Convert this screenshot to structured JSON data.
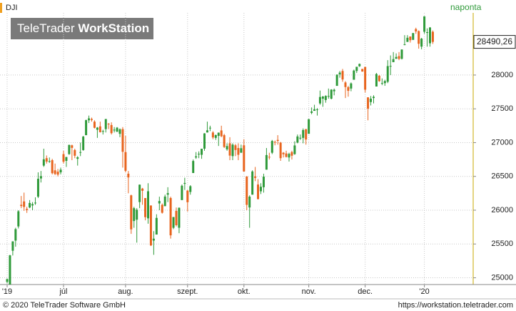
{
  "chart_data": {
    "type": "candlestick",
    "symbol": "DJI",
    "interval": "naponta",
    "logo": {
      "light": "TeleTrader",
      "bold": "WorkStation"
    },
    "footer_left": "© 2020 TeleTrader Software GmbH",
    "footer_right": "https://workstation.teletrader.com",
    "up_color": "#2f9a3a",
    "down_color": "#e8641e",
    "grid": true,
    "ylim": [
      24900,
      29110
    ],
    "yticks": [
      25000,
      25500,
      26000,
      26500,
      27000,
      27500,
      28000
    ],
    "xticks": [
      {
        "value": 0,
        "label": "'19"
      },
      {
        "value": 20,
        "label": "júl"
      },
      {
        "value": 42,
        "label": "aug."
      },
      {
        "value": 64,
        "label": "szept."
      },
      {
        "value": 84,
        "label": "okt."
      },
      {
        "value": 107,
        "label": "nov."
      },
      {
        "value": 127,
        "label": "dec."
      },
      {
        "value": 148,
        "label": "'20"
      }
    ],
    "last_price": {
      "value": 28490.26,
      "label": "28490,26"
    },
    "candles": [
      [
        24940,
        24990,
        24920,
        24980
      ],
      [
        24830,
        25340,
        24820,
        25332
      ],
      [
        25400,
        25540,
        25330,
        25539
      ],
      [
        25550,
        25740,
        25460,
        25720
      ],
      [
        25760,
        26000,
        25730,
        25984
      ],
      [
        26080,
        26210,
        26030,
        26062
      ],
      [
        26130,
        26260,
        25990,
        26048
      ],
      [
        26020,
        26050,
        25960,
        26004
      ],
      [
        26040,
        26150,
        26030,
        26107
      ],
      [
        26070,
        26120,
        26000,
        26090
      ],
      [
        26110,
        26190,
        26080,
        26112
      ],
      [
        26200,
        26560,
        26180,
        26465
      ],
      [
        26470,
        26580,
        26410,
        26504
      ],
      [
        26660,
        26910,
        26640,
        26753
      ],
      [
        26770,
        26810,
        26690,
        26719
      ],
      [
        26720,
        26780,
        26700,
        26727
      ],
      [
        26740,
        26760,
        26530,
        26548
      ],
      [
        26590,
        26690,
        26520,
        26536
      ],
      [
        26570,
        26610,
        26500,
        26526
      ],
      [
        26560,
        26630,
        26530,
        26600
      ],
      [
        26830,
        26880,
        26690,
        26717
      ],
      [
        26730,
        26790,
        26640,
        26786
      ],
      [
        26830,
        26970,
        26820,
        26966
      ],
      [
        26960,
        26970,
        26740,
        26922
      ],
      [
        26890,
        26910,
        26770,
        26806
      ],
      [
        26760,
        26800,
        26660,
        26783
      ],
      [
        26860,
        27000,
        26800,
        26860
      ],
      [
        26890,
        27100,
        26880,
        27088
      ],
      [
        27110,
        27340,
        27110,
        27332
      ],
      [
        27330,
        27400,
        27290,
        27359
      ],
      [
        27350,
        27370,
        27310,
        27335
      ],
      [
        27310,
        27330,
        27210,
        27219
      ],
      [
        27190,
        27230,
        27070,
        27222
      ],
      [
        27240,
        27310,
        27150,
        27154
      ],
      [
        27170,
        27190,
        27120,
        27171
      ],
      [
        27200,
        27350,
        27150,
        27349
      ],
      [
        27280,
        27290,
        27200,
        27270
      ],
      [
        27260,
        27300,
        27120,
        27140
      ],
      [
        27180,
        27230,
        27150,
        27192
      ],
      [
        27160,
        27230,
        27160,
        27221
      ],
      [
        27130,
        27210,
        27080,
        27198
      ],
      [
        27200,
        27230,
        26630,
        26864
      ],
      [
        26860,
        27100,
        26560,
        26583
      ],
      [
        26540,
        26580,
        26250,
        26485
      ],
      [
        26220,
        26230,
        25650,
        25717
      ],
      [
        25840,
        26050,
        25740,
        26030
      ],
      [
        25860,
        26030,
        25520,
        26007
      ],
      [
        26120,
        26380,
        26030,
        26378
      ],
      [
        26320,
        26330,
        26080,
        26287
      ],
      [
        26180,
        26180,
        25850,
        25897
      ],
      [
        25880,
        26400,
        25800,
        26280
      ],
      [
        26070,
        26070,
        25470,
        25479
      ],
      [
        25550,
        25690,
        25340,
        25579
      ],
      [
        25640,
        25940,
        25640,
        25886
      ],
      [
        26100,
        26200,
        26000,
        26136
      ],
      [
        26080,
        26100,
        25950,
        25962
      ],
      [
        26060,
        26230,
        26060,
        26202
      ],
      [
        26230,
        26340,
        26120,
        26252
      ],
      [
        26180,
        26200,
        25580,
        25628
      ],
      [
        25740,
        25900,
        25720,
        25899
      ],
      [
        25990,
        26040,
        25760,
        25778
      ],
      [
        25740,
        26040,
        25660,
        26036
      ],
      [
        26150,
        26380,
        26150,
        26362
      ],
      [
        26390,
        26480,
        26300,
        26403
      ],
      [
        26290,
        26300,
        25980,
        26118
      ],
      [
        26270,
        26370,
        26230,
        26355
      ],
      [
        26550,
        26750,
        26550,
        26728
      ],
      [
        26780,
        26860,
        26760,
        26797
      ],
      [
        26830,
        26870,
        26770,
        26835
      ],
      [
        26820,
        26910,
        26760,
        26909
      ],
      [
        26910,
        27140,
        26880,
        27137
      ],
      [
        27150,
        27310,
        27150,
        27182
      ],
      [
        27210,
        27250,
        27170,
        27220
      ],
      [
        27150,
        27170,
        27050,
        27076
      ],
      [
        27070,
        27120,
        27040,
        27111
      ],
      [
        27100,
        27150,
        26950,
        27147
      ],
      [
        27180,
        27250,
        27080,
        27094
      ],
      [
        27110,
        27130,
        26920,
        26935
      ],
      [
        26900,
        26990,
        26880,
        26949
      ],
      [
        26990,
        27080,
        26740,
        26808
      ],
      [
        26800,
        26990,
        26740,
        26970
      ],
      [
        26960,
        26980,
        26800,
        26891
      ],
      [
        26920,
        26990,
        26740,
        26820
      ],
      [
        26850,
        26970,
        26850,
        26917
      ],
      [
        26960,
        27050,
        26570,
        26573
      ],
      [
        26500,
        26500,
        26000,
        26079
      ],
      [
        26040,
        26220,
        25740,
        26201
      ],
      [
        26230,
        26590,
        26230,
        26573
      ],
      [
        26500,
        26640,
        26430,
        26478
      ],
      [
        26380,
        26460,
        26160,
        26164
      ],
      [
        26280,
        26400,
        26240,
        26347
      ],
      [
        26340,
        26540,
        26260,
        26497
      ],
      [
        26600,
        26920,
        26600,
        26816
      ],
      [
        26790,
        26850,
        26750,
        26787
      ],
      [
        26850,
        27040,
        26830,
        27024
      ],
      [
        27010,
        27030,
        26960,
        27001
      ],
      [
        27040,
        27110,
        26970,
        27026
      ],
      [
        27000,
        27010,
        26730,
        26770
      ],
      [
        26850,
        26860,
        26780,
        26828
      ],
      [
        26840,
        26880,
        26780,
        26788
      ],
      [
        26780,
        26850,
        26720,
        26834
      ],
      [
        26860,
        26880,
        26750,
        26806
      ],
      [
        26830,
        27020,
        26820,
        26958
      ],
      [
        27000,
        27120,
        26990,
        27091
      ],
      [
        27060,
        27120,
        27040,
        27071
      ],
      [
        27070,
        27210,
        26990,
        27186
      ],
      [
        27200,
        27200,
        26970,
        27046
      ],
      [
        27130,
        27350,
        27130,
        27347
      ],
      [
        27440,
        27520,
        27420,
        27462
      ],
      [
        27470,
        27560,
        27470,
        27492
      ],
      [
        27490,
        27510,
        27400,
        27493
      ],
      [
        27580,
        27770,
        27560,
        27675
      ],
      [
        27650,
        27690,
        27530,
        27681
      ],
      [
        27630,
        27700,
        27590,
        27691
      ],
      [
        27680,
        27800,
        27650,
        27691
      ],
      [
        27650,
        27790,
        27640,
        27784
      ],
      [
        27760,
        27800,
        27700,
        27782
      ],
      [
        27840,
        28010,
        27840,
        28005
      ],
      [
        28010,
        28060,
        27960,
        28036
      ],
      [
        28060,
        28090,
        27900,
        27934
      ],
      [
        27890,
        27910,
        27660,
        27822
      ],
      [
        27820,
        27840,
        27680,
        27766
      ],
      [
        27800,
        27890,
        27760,
        27876
      ],
      [
        27930,
        28080,
        27930,
        28066
      ],
      [
        28060,
        28120,
        28030,
        28122
      ],
      [
        28130,
        28170,
        28120,
        28164
      ],
      [
        28090,
        28090,
        28050,
        28051
      ],
      [
        28120,
        28120,
        27740,
        27783
      ],
      [
        27670,
        27670,
        27330,
        27503
      ],
      [
        27600,
        27690,
        27550,
        27650
      ],
      [
        27660,
        27700,
        27580,
        27678
      ],
      [
        27830,
        28030,
        27830,
        28015
      ],
      [
        27990,
        28000,
        27900,
        27909
      ],
      [
        27880,
        27950,
        27850,
        27882
      ],
      [
        27880,
        27930,
        27840,
        27911
      ],
      [
        27900,
        28220,
        27880,
        28132
      ],
      [
        28130,
        28290,
        28000,
        28135
      ],
      [
        28190,
        28340,
        28190,
        28235
      ],
      [
        28240,
        28320,
        28240,
        28267
      ],
      [
        28280,
        28340,
        28220,
        28239
      ],
      [
        28240,
        28380,
        28230,
        28377
      ],
      [
        28450,
        28590,
        28440,
        28455
      ],
      [
        28490,
        28590,
        28490,
        28551
      ],
      [
        28570,
        28570,
        28480,
        28515
      ],
      [
        28520,
        28620,
        28520,
        28621
      ],
      [
        28680,
        28700,
        28610,
        28645
      ],
      [
        28650,
        28660,
        28390,
        28462
      ],
      [
        28420,
        28550,
        28380,
        28538
      ],
      [
        28640,
        28870,
        28610,
        28868
      ],
      [
        28630,
        28690,
        28420,
        28634
      ],
      [
        28470,
        28710,
        28420,
        28703
      ],
      [
        28640,
        28660,
        28460,
        28490.26
      ]
    ]
  }
}
